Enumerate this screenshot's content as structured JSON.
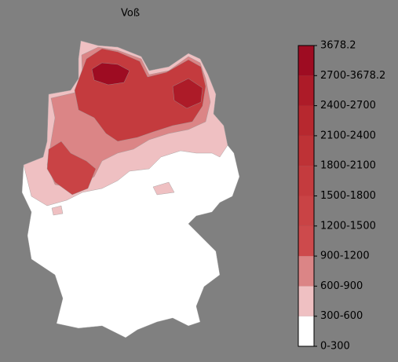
{
  "title": "Voß",
  "colorbar": {
    "labels": [
      "0-300",
      "300-600",
      "600-900",
      "900-1200",
      "1200-1500",
      "1500-1800",
      "1800-2100",
      "2100-2400",
      "2400-2700",
      "2700-3678.2",
      "3678.2"
    ],
    "colors": [
      "#ffffff",
      "#efc0c2",
      "#db8586",
      "#cd4a4c",
      "#c94345",
      "#c43b3e",
      "#be3236",
      "#b7282f",
      "#ad1b28",
      "#9e0c22"
    ]
  }
}
